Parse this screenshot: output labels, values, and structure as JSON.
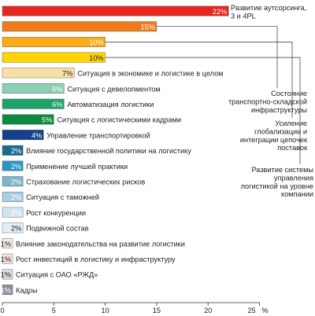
{
  "chart_data": {
    "type": "bar",
    "orientation": "horizontal",
    "xlim": [
      0,
      25
    ],
    "xticks": [
      0,
      5,
      10,
      15,
      20,
      25
    ],
    "x_unit": "%",
    "grid": false,
    "bars": [
      {
        "value": 22,
        "label": "22%",
        "color": "#e3261f",
        "label_color": "#ffffff",
        "category": ""
      },
      {
        "value": 15,
        "label": "15%",
        "color": "#f07b1b",
        "label_color": "#ffffff",
        "category": ""
      },
      {
        "value": 10,
        "label": "10%",
        "color": "#f9ab1a",
        "label_color": "#ffffff",
        "category": ""
      },
      {
        "value": 10,
        "label": "10%",
        "color": "#ffd400",
        "label_color": "#222222",
        "category": ""
      },
      {
        "value": 7,
        "label": "7%",
        "color": "#f7dfa6",
        "label_color": "#222222",
        "category": "Ситуация в экономике и логистике в целом"
      },
      {
        "value": 6,
        "label": "6%",
        "color": "#8ccfb2",
        "label_color": "#ffffff",
        "category": "Ситуация с девелопментом"
      },
      {
        "value": 6,
        "label": "6%",
        "color": "#1fa26a",
        "label_color": "#ffffff",
        "category": "Автоматизация логистики"
      },
      {
        "value": 5,
        "label": "5%",
        "color": "#0d8a3d",
        "label_color": "#ffffff",
        "category": "Ситуация с логистическими кадрами"
      },
      {
        "value": 4,
        "label": "4%",
        "color": "#15418c",
        "label_color": "#ffffff",
        "category": "Управление транспортировкой"
      },
      {
        "value": 2,
        "label": "2%",
        "color": "#1b6a92",
        "label_color": "#ffffff",
        "category": "Влияние государственной политики на логистику"
      },
      {
        "value": 2,
        "label": "2%",
        "color": "#2b94c2",
        "label_color": "#ffffff",
        "category": "Применение лучшей практики"
      },
      {
        "value": 2,
        "label": "2%",
        "color": "#7fb4cf",
        "label_color": "#ffffff",
        "category": "Страхование логистических рисков"
      },
      {
        "value": 2,
        "label": "2%",
        "color": "#a6cfe2",
        "label_color": "#ffffff",
        "category": "Ситуация с таможней"
      },
      {
        "value": 2,
        "label": "2%",
        "color": "#cfe6f2",
        "label_color": "#ffffff",
        "category": "Рост конкуренции"
      },
      {
        "value": 2,
        "label": "2%",
        "color": "#e2eef6",
        "label_color": "#222222",
        "category": "Подвижной состав"
      },
      {
        "value": 1,
        "label": "1%",
        "color": "#f2ede2",
        "label_color": "#222222",
        "category": "Влияние законодательства на развитие логистики"
      },
      {
        "value": 1,
        "label": "1%",
        "color": "#f8e0e0",
        "label_color": "#222222",
        "category": "Рост инвестиций в логистику и инфраструктуру"
      },
      {
        "value": 1,
        "label": "1%",
        "color": "#dcdce3",
        "label_color": "#222222",
        "category": "Ситуация с ОАО «РЖД»"
      },
      {
        "value": 1,
        "label": "1%",
        "color": "#8e8da0",
        "label_color": "#ffffff",
        "category": "Кадры"
      }
    ],
    "callouts": [
      {
        "bar_index": 0,
        "lines": [
          "Развитие аутсорсинга,",
          "3 и 4PL"
        ]
      },
      {
        "bar_index": 1,
        "lines": [
          "Состояние",
          "транспортно-складской",
          "инфраструктуры"
        ]
      },
      {
        "bar_index": 2,
        "lines": [
          "Усиление",
          "глобализации и",
          "интеграции цепочек",
          "поставок"
        ]
      },
      {
        "bar_index": 3,
        "lines": [
          "Развитие системы",
          "управления",
          "логистикой на уровне",
          "компании"
        ]
      }
    ]
  }
}
